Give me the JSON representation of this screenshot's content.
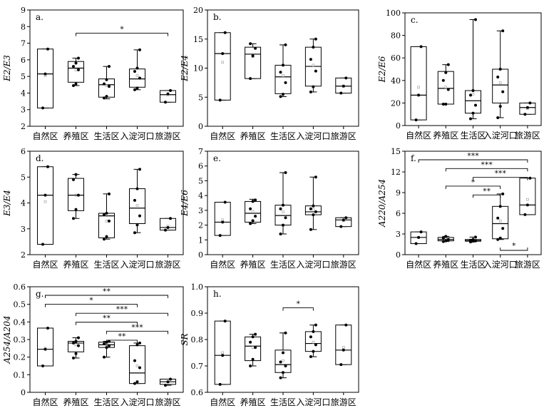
{
  "chart_data": [
    {
      "type": "box",
      "title": "a.",
      "ylabel": "E2/E3",
      "ylim": [
        2,
        9
      ],
      "yticks": [
        "2",
        "3",
        "4",
        "5",
        "6",
        "7",
        "8",
        "9"
      ],
      "categories": [
        "自然区",
        "养殖区",
        "生活区",
        "入淀河口",
        "旅游区"
      ],
      "boxes": [
        {
          "min": 3.1,
          "q1": 3.1,
          "median": 5.15,
          "q3": 6.65,
          "max": 6.65,
          "mean": 5.05,
          "points": [
            3.1,
            5.15,
            6.65
          ]
        },
        {
          "min": 4.45,
          "q1": 4.65,
          "median": 5.5,
          "q3": 5.9,
          "max": 6.1,
          "mean": 5.4,
          "points": [
            4.45,
            4.55,
            5.4,
            5.6,
            5.8,
            6.1
          ]
        },
        {
          "min": 3.65,
          "q1": 3.75,
          "median": 4.5,
          "q3": 4.85,
          "max": 5.6,
          "mean": 4.45,
          "points": [
            3.7,
            3.8,
            4.4,
            4.55,
            4.8,
            5.6
          ]
        },
        {
          "min": 4.2,
          "q1": 4.35,
          "median": 4.85,
          "q3": 5.45,
          "max": 6.6,
          "mean": 5.05,
          "points": [
            4.2,
            4.3,
            4.9,
            5.3,
            5.5,
            6.6
          ]
        },
        {
          "min": 3.45,
          "q1": 3.45,
          "median": 3.9,
          "q3": 4.15,
          "max": 4.15,
          "mean": 3.9,
          "points": [
            3.45,
            3.95,
            4.15
          ]
        }
      ],
      "brackets": [
        {
          "from": 1,
          "to": 4,
          "label": "*"
        }
      ]
    },
    {
      "type": "box",
      "title": "b.",
      "ylabel": "E2/E4",
      "ylim": [
        0,
        20
      ],
      "yticks": [
        "0",
        "5",
        "10",
        "15",
        "20"
      ],
      "categories": [
        "自然区",
        "养殖区",
        "生活区",
        "入淀河口",
        "旅游区"
      ],
      "boxes": [
        {
          "min": 4.5,
          "q1": 4.5,
          "median": 12.5,
          "q3": 16.1,
          "max": 16.1,
          "mean": 11,
          "points": [
            4.5,
            12.5,
            16.1
          ]
        },
        {
          "min": 8.2,
          "q1": 8.2,
          "median": 12.4,
          "q3": 13.6,
          "max": 14.2,
          "mean": 12,
          "points": [
            8.2,
            12.1,
            13.4,
            14.2
          ]
        },
        {
          "min": 5.1,
          "q1": 5.6,
          "median": 8.5,
          "q3": 10.5,
          "max": 14,
          "mean": 8.7,
          "points": [
            5.1,
            5.5,
            7.5,
            9.3,
            10.5,
            14
          ]
        },
        {
          "min": 5.9,
          "q1": 6.9,
          "median": 10.3,
          "q3": 13.6,
          "max": 15,
          "mean": 10.5,
          "points": [
            5.9,
            6.8,
            9.5,
            11.5,
            13.6,
            15
          ]
        },
        {
          "min": 5.7,
          "q1": 5.7,
          "median": 6.9,
          "q3": 8.3,
          "max": 8.3,
          "mean": 6.9,
          "points": [
            5.7,
            6.9,
            8.3
          ]
        }
      ],
      "brackets": []
    },
    {
      "type": "box",
      "title": "c.",
      "ylabel": "E2/E6",
      "ylim": [
        0,
        100
      ],
      "yticks": [
        "0",
        "20",
        "40",
        "60",
        "80",
        "100"
      ],
      "categories": [
        "自然区",
        "养殖区",
        "生活区",
        "入淀河口",
        "旅游区"
      ],
      "boxes": [
        {
          "min": 5,
          "q1": 5,
          "median": 27,
          "q3": 70,
          "max": 70,
          "mean": 34,
          "points": [
            5,
            27,
            70
          ]
        },
        {
          "min": 19,
          "q1": 19,
          "median": 33,
          "q3": 48,
          "max": 54,
          "mean": 34,
          "points": [
            19,
            19,
            32,
            40,
            47,
            54
          ]
        },
        {
          "min": 6,
          "q1": 11,
          "median": 22,
          "q3": 31,
          "max": 94,
          "mean": 28,
          "points": [
            6,
            11,
            18,
            27,
            31,
            94
          ]
        },
        {
          "min": 7,
          "q1": 20,
          "median": 36,
          "q3": 50,
          "max": 84,
          "mean": 38,
          "points": [
            7,
            17,
            30,
            43,
            50,
            84
          ]
        },
        {
          "min": 10,
          "q1": 10,
          "median": 16,
          "q3": 20,
          "max": 20,
          "mean": 15,
          "points": [
            10,
            16,
            20
          ]
        }
      ],
      "brackets": []
    },
    {
      "type": "box",
      "title": "d.",
      "ylabel": "E3/E4",
      "ylim": [
        2,
        6
      ],
      "yticks": [
        "2",
        "3",
        "4",
        "5",
        "6"
      ],
      "categories": [
        "自然区",
        "养殖区",
        "生活区",
        "入淀河口",
        "旅游区"
      ],
      "boxes": [
        {
          "min": 2.4,
          "q1": 2.4,
          "median": 4.3,
          "q3": 5.4,
          "max": 5.4,
          "mean": 4.05,
          "points": [
            2.4,
            4.3,
            5.4
          ]
        },
        {
          "min": 3.4,
          "q1": 3.7,
          "median": 4.3,
          "q3": 4.95,
          "max": 5.1,
          "mean": 4.3,
          "points": [
            3.4,
            3.75,
            4.3,
            4.9,
            5.1
          ]
        },
        {
          "min": 2.6,
          "q1": 2.65,
          "median": 3.5,
          "q3": 3.6,
          "max": 4.35,
          "mean": 3.3,
          "points": [
            2.6,
            2.7,
            3.3,
            3.55,
            3.6,
            4.35
          ]
        },
        {
          "min": 2.85,
          "q1": 3.2,
          "median": 3.8,
          "q3": 4.55,
          "max": 5.3,
          "mean": 3.9,
          "points": [
            2.85,
            3.15,
            3.5,
            4.1,
            4.55,
            5.3
          ]
        },
        {
          "min": 2.95,
          "q1": 2.95,
          "median": 3.05,
          "q3": 3.4,
          "max": 3.4,
          "mean": 3.1,
          "points": [
            2.95,
            3.05,
            3.4
          ]
        }
      ],
      "brackets": []
    },
    {
      "type": "box",
      "title": "e.",
      "ylabel": "E4/E6",
      "ylim": [
        0,
        7
      ],
      "yticks": [
        "0",
        "1",
        "2",
        "3",
        "4",
        "5",
        "6",
        "7"
      ],
      "categories": [
        "自然区",
        "养殖区",
        "生活区",
        "入淀河口",
        "旅游区"
      ],
      "boxes": [
        {
          "min": 1.3,
          "q1": 1.3,
          "median": 2.2,
          "q3": 3.55,
          "max": 3.55,
          "mean": 2.35,
          "points": [
            1.3,
            2.2,
            3.55
          ]
        },
        {
          "min": 2.1,
          "q1": 2.2,
          "median": 2.8,
          "q3": 3.6,
          "max": 3.75,
          "mean": 2.9,
          "points": [
            2.1,
            2.3,
            2.6,
            3.1,
            3.6,
            3.7
          ]
        },
        {
          "min": 1.4,
          "q1": 2,
          "median": 2.65,
          "q3": 3.35,
          "max": 5.55,
          "mean": 2.9,
          "points": [
            1.4,
            2,
            2.5,
            3.1,
            3.35,
            5.55
          ]
        },
        {
          "min": 1.7,
          "q1": 2.7,
          "median": 2.9,
          "q3": 3.3,
          "max": 5.25,
          "mean": 3.1,
          "points": [
            1.7,
            2.7,
            2.9,
            3.1,
            3.3,
            5.25
          ]
        },
        {
          "min": 1.9,
          "q1": 1.9,
          "median": 2.35,
          "q3": 2.5,
          "max": 2.5,
          "mean": 2.3,
          "points": [
            1.9,
            2.35,
            2.5
          ]
        }
      ],
      "brackets": []
    },
    {
      "type": "box",
      "title": "f.",
      "ylabel": "A220/A254",
      "ylim": [
        0,
        15
      ],
      "yticks": [
        "0",
        "3",
        "6",
        "9",
        "12",
        "15"
      ],
      "categories": [
        "自然区",
        "养殖区",
        "生活区",
        "入淀河口",
        "旅游区"
      ],
      "boxes": [
        {
          "min": 1.6,
          "q1": 1.6,
          "median": 2.5,
          "q3": 3.3,
          "max": 3.3,
          "mean": 2.5,
          "points": [
            1.6,
            2.5,
            3.3
          ]
        },
        {
          "min": 1.9,
          "q1": 2,
          "median": 2.2,
          "q3": 2.5,
          "max": 2.65,
          "mean": 2.2,
          "points": [
            1.9,
            2,
            2.2,
            2.4,
            2.65
          ]
        },
        {
          "min": 1.85,
          "q1": 1.95,
          "median": 2.05,
          "q3": 2.2,
          "max": 2.55,
          "mean": 2.1,
          "points": [
            1.85,
            1.95,
            2,
            2.1,
            2.2,
            2.55
          ]
        },
        {
          "min": 2.2,
          "q1": 2.3,
          "median": 4.5,
          "q3": 7,
          "max": 8.8,
          "mean": 4.9,
          "points": [
            2.2,
            2.4,
            3.8,
            5.3,
            7,
            8.8
          ]
        },
        {
          "min": 5.8,
          "q1": 5.8,
          "median": 7.2,
          "q3": 11.1,
          "max": 11.1,
          "mean": 8,
          "points": [
            5.8,
            7.2,
            11.1
          ]
        }
      ],
      "brackets": [
        {
          "from": 0,
          "to": 4,
          "label": "***"
        },
        {
          "from": 1,
          "to": 4,
          "label": "***"
        },
        {
          "from": 2,
          "to": 4,
          "label": "***"
        },
        {
          "from": 1,
          "to": 3,
          "label": "*"
        },
        {
          "from": 2,
          "to": 3,
          "label": "**"
        },
        {
          "from": 3,
          "to": 4,
          "label": "*",
          "below": true
        }
      ]
    },
    {
      "type": "box",
      "title": "g.",
      "ylabel": "A254/A204",
      "ylim": [
        0,
        0.6
      ],
      "yticks": [
        "0",
        "0.1",
        "0.2",
        "0.3",
        "0.4",
        "0.5",
        "0.6"
      ],
      "categories": [
        "自然区",
        "养殖区",
        "生活区",
        "入淀河口",
        "旅游区"
      ],
      "boxes": [
        {
          "min": 0.15,
          "q1": 0.15,
          "median": 0.245,
          "q3": 0.365,
          "max": 0.365,
          "mean": 0.25,
          "points": [
            0.15,
            0.245,
            0.365
          ]
        },
        {
          "min": 0.195,
          "q1": 0.23,
          "median": 0.28,
          "q3": 0.29,
          "max": 0.31,
          "mean": 0.27,
          "points": [
            0.195,
            0.22,
            0.265,
            0.28,
            0.29,
            0.31
          ]
        },
        {
          "min": 0.2,
          "q1": 0.255,
          "median": 0.27,
          "q3": 0.285,
          "max": 0.29,
          "mean": 0.27,
          "points": [
            0.2,
            0.255,
            0.265,
            0.275,
            0.285,
            0.29
          ]
        },
        {
          "min": 0.05,
          "q1": 0.05,
          "median": 0.11,
          "q3": 0.265,
          "max": 0.28,
          "mean": 0.15,
          "points": [
            0.05,
            0.06,
            0.14,
            0.18,
            0.27,
            0.28
          ]
        },
        {
          "min": 0.04,
          "q1": 0.045,
          "median": 0.06,
          "q3": 0.075,
          "max": 0.075,
          "mean": 0.06,
          "points": [
            0.04,
            0.06,
            0.075
          ]
        }
      ],
      "brackets": [
        {
          "from": 0,
          "to": 4,
          "label": "**"
        },
        {
          "from": 0,
          "to": 3,
          "label": "*"
        },
        {
          "from": 1,
          "to": 4,
          "label": "***"
        },
        {
          "from": 1,
          "to": 3,
          "label": "**"
        },
        {
          "from": 2,
          "to": 4,
          "label": "***"
        },
        {
          "from": 2,
          "to": 3,
          "label": "**"
        }
      ]
    },
    {
      "type": "box",
      "title": "h.",
      "ylabel": "SR",
      "ylim": [
        0.6,
        1.0
      ],
      "yticks": [
        "0.6",
        "0.7",
        "0.8",
        "0.9",
        "1.0"
      ],
      "categories": [
        "自然区",
        "养殖区",
        "生活区",
        "入淀河口",
        "旅游区"
      ],
      "boxes": [
        {
          "min": 0.63,
          "q1": 0.63,
          "median": 0.74,
          "q3": 0.87,
          "max": 0.87,
          "mean": 0.75,
          "points": [
            0.63,
            0.74,
            0.87
          ]
        },
        {
          "min": 0.7,
          "q1": 0.72,
          "median": 0.775,
          "q3": 0.81,
          "max": 0.82,
          "mean": 0.77,
          "points": [
            0.7,
            0.725,
            0.77,
            0.79,
            0.81,
            0.82
          ]
        },
        {
          "min": 0.655,
          "q1": 0.675,
          "median": 0.705,
          "q3": 0.76,
          "max": 0.825,
          "mean": 0.72,
          "points": [
            0.655,
            0.675,
            0.7,
            0.715,
            0.75,
            0.825
          ]
        },
        {
          "min": 0.735,
          "q1": 0.755,
          "median": 0.785,
          "q3": 0.83,
          "max": 0.855,
          "mean": 0.79,
          "points": [
            0.735,
            0.755,
            0.78,
            0.81,
            0.83,
            0.855
          ]
        },
        {
          "min": 0.705,
          "q1": 0.705,
          "median": 0.76,
          "q3": 0.855,
          "max": 0.855,
          "mean": 0.77,
          "points": [
            0.705,
            0.76,
            0.855
          ]
        }
      ],
      "brackets": [
        {
          "from": 2,
          "to": 3,
          "label": "*"
        }
      ]
    }
  ]
}
